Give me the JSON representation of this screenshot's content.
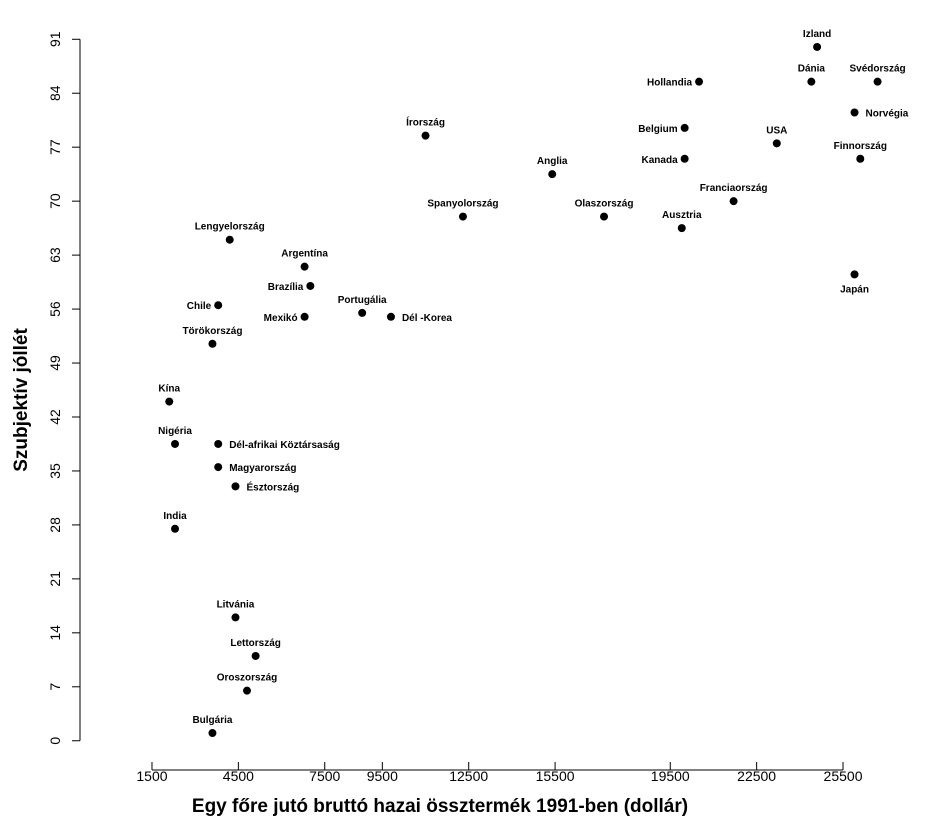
{
  "chart_data": {
    "type": "scatter",
    "title": "",
    "xlabel": "Egy főre jutó bruttó hazai össztermék 1991-ben (dollár)",
    "ylabel": "Szubjektív jóllét",
    "xlim": [
      -1000,
      28000
    ],
    "ylim": [
      -1.2,
      93.5
    ],
    "xticks": [
      1500,
      4500,
      7500,
      9500,
      12500,
      15500,
      19500,
      22500,
      25500
    ],
    "yticks": [
      0,
      7,
      14,
      21,
      28,
      35,
      42,
      49,
      56,
      63,
      70,
      77,
      84,
      91
    ],
    "grid": false,
    "legend": "none",
    "points": [
      {
        "label": "Izland",
        "x": 24600,
        "y": 90,
        "pos": "above"
      },
      {
        "label": "Svédország",
        "x": 26700,
        "y": 85.5,
        "pos": "above"
      },
      {
        "label": "Dánia",
        "x": 24400,
        "y": 85.5,
        "pos": "above"
      },
      {
        "label": "Hollandia",
        "x": 20500,
        "y": 85.5,
        "pos": "left"
      },
      {
        "label": "Norvégia",
        "x": 25900,
        "y": 81.5,
        "pos": "right"
      },
      {
        "label": "Belgium",
        "x": 20000,
        "y": 79.5,
        "pos": "left"
      },
      {
        "label": "Írország",
        "x": 11000,
        "y": 78.5,
        "pos": "above"
      },
      {
        "label": "USA",
        "x": 23200,
        "y": 77.5,
        "pos": "above"
      },
      {
        "label": "Kanada",
        "x": 20000,
        "y": 75.5,
        "pos": "left"
      },
      {
        "label": "Finnország",
        "x": 26100,
        "y": 75.5,
        "pos": "above"
      },
      {
        "label": "Anglia",
        "x": 15400,
        "y": 73.5,
        "pos": "above"
      },
      {
        "label": "Franciaország",
        "x": 21700,
        "y": 70,
        "pos": "above"
      },
      {
        "label": "Spanyolország",
        "x": 12300,
        "y": 68,
        "pos": "above"
      },
      {
        "label": "Olaszország",
        "x": 17200,
        "y": 68,
        "pos": "above"
      },
      {
        "label": "Ausztria",
        "x": 19900,
        "y": 66.5,
        "pos": "above"
      },
      {
        "label": "Lengyelország",
        "x": 4200,
        "y": 65,
        "pos": "above"
      },
      {
        "label": "Argentína",
        "x": 6800,
        "y": 61.5,
        "pos": "above"
      },
      {
        "label": "Japán",
        "x": 25900,
        "y": 60.5,
        "pos": "below"
      },
      {
        "label": "Brazília",
        "x": 7000,
        "y": 59,
        "pos": "left"
      },
      {
        "label": "Chile",
        "x": 3800,
        "y": 56.5,
        "pos": "left"
      },
      {
        "label": "Portugália",
        "x": 8800,
        "y": 55.5,
        "pos": "above"
      },
      {
        "label": "Mexikó",
        "x": 6800,
        "y": 55,
        "pos": "left"
      },
      {
        "label": "Dél -Korea",
        "x": 9800,
        "y": 55,
        "pos": "right"
      },
      {
        "label": "Törökország",
        "x": 3600,
        "y": 51.5,
        "pos": "above"
      },
      {
        "label": "Kína",
        "x": 2100,
        "y": 44,
        "pos": "above"
      },
      {
        "label": "Nigéria",
        "x": 2300,
        "y": 38.5,
        "pos": "above"
      },
      {
        "label": "Dél-afrikai Köztársaság",
        "x": 3800,
        "y": 38.5,
        "pos": "right"
      },
      {
        "label": "Magyarország",
        "x": 3800,
        "y": 35.5,
        "pos": "right"
      },
      {
        "label": "Észtország",
        "x": 4400,
        "y": 33,
        "pos": "right"
      },
      {
        "label": "India",
        "x": 2300,
        "y": 27.5,
        "pos": "above"
      },
      {
        "label": "Litvánia",
        "x": 4400,
        "y": 16,
        "pos": "above"
      },
      {
        "label": "Lettország",
        "x": 5100,
        "y": 11,
        "pos": "above"
      },
      {
        "label": "Oroszország",
        "x": 4800,
        "y": 6.5,
        "pos": "above"
      },
      {
        "label": "Bulgária",
        "x": 3600,
        "y": 1,
        "pos": "above"
      }
    ]
  }
}
